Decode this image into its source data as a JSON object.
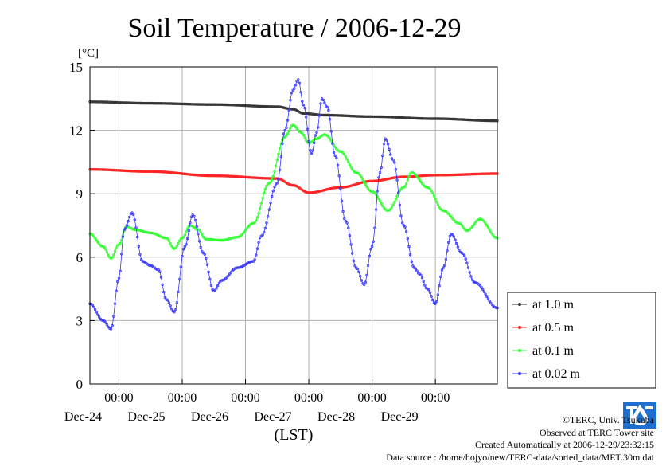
{
  "chart_data": {
    "type": "line",
    "title": "Soil Temperature / 2006-12-29",
    "ylabel": "[°C]",
    "xlabel": "(LST)",
    "ylim": [
      0,
      15
    ],
    "yticks": [
      "0",
      "3",
      "6",
      "9",
      "12",
      "15"
    ],
    "xlim": [
      "2006-12-23 13:00",
      "2006-12-29 23:30"
    ],
    "xticks": [
      {
        "time": "2006-12-24 00:00",
        "top": "00:00",
        "bottom": "Dec-24"
      },
      {
        "time": "2006-12-25 00:00",
        "top": "00:00",
        "bottom": "Dec-25"
      },
      {
        "time": "2006-12-26 00:00",
        "top": "00:00",
        "bottom": "Dec-26"
      },
      {
        "time": "2006-12-27 00:00",
        "top": "00:00",
        "bottom": "Dec-27"
      },
      {
        "time": "2006-12-28 00:00",
        "top": "00:00",
        "bottom": "Dec-28"
      },
      {
        "time": "2006-12-29 00:00",
        "top": "00:00",
        "bottom": "Dec-29"
      }
    ],
    "grid": true,
    "legend_position": "right",
    "series": [
      {
        "name": "at 1.0 m",
        "color": "#333333",
        "points": [
          [
            "2006-12-23 13:00",
            13.35
          ],
          [
            "2006-12-24 12:00",
            13.28
          ],
          [
            "2006-12-25 12:00",
            13.22
          ],
          [
            "2006-12-26 12:00",
            13.12
          ],
          [
            "2006-12-26 18:00",
            13.0
          ],
          [
            "2006-12-26 22:00",
            12.8
          ],
          [
            "2006-12-27 06:00",
            12.72
          ],
          [
            "2006-12-28 00:00",
            12.65
          ],
          [
            "2006-12-29 00:00",
            12.55
          ],
          [
            "2006-12-29 23:30",
            12.45
          ]
        ]
      },
      {
        "name": "at 0.5 m",
        "color": "#ff2020",
        "points": [
          [
            "2006-12-23 13:00",
            10.15
          ],
          [
            "2006-12-24 12:00",
            10.05
          ],
          [
            "2006-12-25 12:00",
            9.85
          ],
          [
            "2006-12-26 12:00",
            9.72
          ],
          [
            "2006-12-26 18:00",
            9.4
          ],
          [
            "2006-12-27 00:00",
            9.05
          ],
          [
            "2006-12-27 12:00",
            9.3
          ],
          [
            "2006-12-28 00:00",
            9.6
          ],
          [
            "2006-12-28 12:00",
            9.8
          ],
          [
            "2006-12-29 00:00",
            9.88
          ],
          [
            "2006-12-29 23:30",
            9.95
          ]
        ]
      },
      {
        "name": "at 0.1 m",
        "color": "#33ff33",
        "points": [
          [
            "2006-12-23 13:00",
            7.1
          ],
          [
            "2006-12-23 18:00",
            6.5
          ],
          [
            "2006-12-23 21:00",
            5.95
          ],
          [
            "2006-12-24 00:00",
            6.6
          ],
          [
            "2006-12-24 03:00",
            7.45
          ],
          [
            "2006-12-24 06:00",
            7.3
          ],
          [
            "2006-12-24 12:00",
            7.15
          ],
          [
            "2006-12-24 18:00",
            6.9
          ],
          [
            "2006-12-24 21:00",
            6.4
          ],
          [
            "2006-12-25 00:00",
            6.9
          ],
          [
            "2006-12-25 03:00",
            7.5
          ],
          [
            "2006-12-25 06:00",
            7.3
          ],
          [
            "2006-12-25 09:00",
            6.85
          ],
          [
            "2006-12-25 15:00",
            6.8
          ],
          [
            "2006-12-25 21:00",
            6.95
          ],
          [
            "2006-12-26 03:00",
            7.6
          ],
          [
            "2006-12-26 09:00",
            9.5
          ],
          [
            "2006-12-26 15:00",
            11.7
          ],
          [
            "2006-12-26 18:00",
            12.25
          ],
          [
            "2006-12-26 21:00",
            11.9
          ],
          [
            "2006-12-27 00:00",
            11.4
          ],
          [
            "2006-12-27 03:00",
            11.6
          ],
          [
            "2006-12-27 06:00",
            11.8
          ],
          [
            "2006-12-27 12:00",
            11.0
          ],
          [
            "2006-12-27 18:00",
            10.0
          ],
          [
            "2006-12-28 00:00",
            9.1
          ],
          [
            "2006-12-28 06:00",
            8.2
          ],
          [
            "2006-12-28 12:00",
            9.3
          ],
          [
            "2006-12-28 15:00",
            10.0
          ],
          [
            "2006-12-28 21:00",
            9.3
          ],
          [
            "2006-12-29 03:00",
            8.2
          ],
          [
            "2006-12-29 09:00",
            7.6
          ],
          [
            "2006-12-29 12:00",
            7.25
          ],
          [
            "2006-12-29 17:00",
            7.8
          ],
          [
            "2006-12-29 23:30",
            6.9
          ]
        ]
      },
      {
        "name": "at 0.02 m",
        "color": "#3333ff",
        "points": [
          [
            "2006-12-23 13:00",
            3.8
          ],
          [
            "2006-12-23 18:00",
            3.0
          ],
          [
            "2006-12-23 21:00",
            2.6
          ],
          [
            "2006-12-24 00:00",
            5.0
          ],
          [
            "2006-12-24 02:00",
            7.3
          ],
          [
            "2006-12-24 05:00",
            8.1
          ],
          [
            "2006-12-24 09:00",
            5.8
          ],
          [
            "2006-12-24 12:00",
            5.6
          ],
          [
            "2006-12-24 15:00",
            5.4
          ],
          [
            "2006-12-24 18:00",
            4.0
          ],
          [
            "2006-12-24 21:00",
            3.4
          ],
          [
            "2006-12-25 01:00",
            6.5
          ],
          [
            "2006-12-25 04:00",
            8.0
          ],
          [
            "2006-12-25 08:00",
            6.2
          ],
          [
            "2006-12-25 12:00",
            4.4
          ],
          [
            "2006-12-25 15:00",
            4.9
          ],
          [
            "2006-12-25 21:00",
            5.5
          ],
          [
            "2006-12-26 03:00",
            5.8
          ],
          [
            "2006-12-26 06:00",
            7.0
          ],
          [
            "2006-12-26 12:00",
            9.5
          ],
          [
            "2006-12-26 15:00",
            12.0
          ],
          [
            "2006-12-26 18:00",
            13.9
          ],
          [
            "2006-12-26 20:00",
            14.4
          ],
          [
            "2006-12-26 22:00",
            13.2
          ],
          [
            "2006-12-27 01:00",
            10.9
          ],
          [
            "2006-12-27 03:00",
            11.9
          ],
          [
            "2006-12-27 05:00",
            13.5
          ],
          [
            "2006-12-27 07:00",
            13.1
          ],
          [
            "2006-12-27 10:00",
            10.8
          ],
          [
            "2006-12-27 14:00",
            7.7
          ],
          [
            "2006-12-27 18:00",
            5.5
          ],
          [
            "2006-12-27 21:00",
            4.7
          ],
          [
            "2006-12-28 00:00",
            6.5
          ],
          [
            "2006-12-28 03:00",
            10.0
          ],
          [
            "2006-12-28 05:00",
            11.6
          ],
          [
            "2006-12-28 08:00",
            10.6
          ],
          [
            "2006-12-28 12:00",
            7.5
          ],
          [
            "2006-12-28 16:00",
            5.5
          ],
          [
            "2006-12-28 18:00",
            5.2
          ],
          [
            "2006-12-28 21:00",
            4.5
          ],
          [
            "2006-12-29 00:00",
            3.8
          ],
          [
            "2006-12-29 03:00",
            5.5
          ],
          [
            "2006-12-29 06:00",
            7.1
          ],
          [
            "2006-12-29 10:00",
            6.2
          ],
          [
            "2006-12-29 15:00",
            4.8
          ],
          [
            "2006-12-29 23:30",
            3.6
          ]
        ]
      }
    ]
  },
  "credits": {
    "copyright": "©TERC, Univ. Tsukuba",
    "observed": "Observed at TERC Tower site",
    "created": "Created Automatically at 2006-12-29/23:32:15",
    "source": "Data source : /home/hojyo/new/TERC-data/sorted_data/MET.30m.dat",
    "logo_text": "TERC"
  }
}
